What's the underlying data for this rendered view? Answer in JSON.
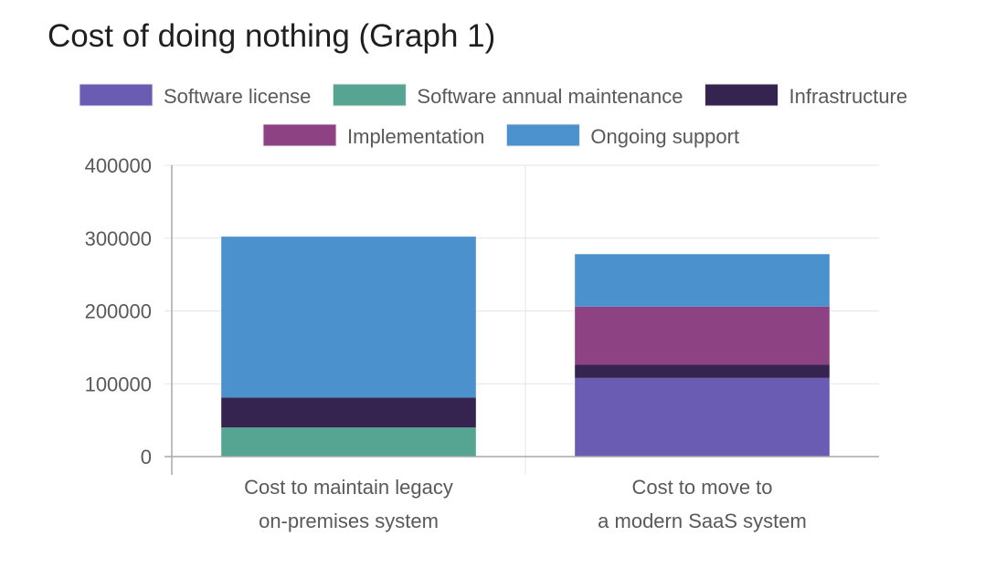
{
  "colors": {
    "software_license": "#6a5cb3",
    "software_annual_maintenance": "#55a592",
    "infrastructure": "#35244f",
    "implementation": "#8c4283",
    "ongoing_support": "#4b91cd",
    "grid": "#e6e6e6",
    "axis": "#a8a8a8"
  },
  "chart_data": {
    "type": "bar",
    "stacked": true,
    "title": "Cost of doing nothing (Graph 1)",
    "xlabel": "",
    "ylabel": "",
    "categories": [
      [
        "Cost to maintain legacy",
        "on-premises system"
      ],
      [
        "Cost to move to",
        "a modern SaaS system"
      ]
    ],
    "ylim": [
      0,
      400000
    ],
    "yticks": [
      0,
      100000,
      200000,
      300000,
      400000
    ],
    "ytick_labels": [
      "0",
      "100000",
      "200000",
      "300000",
      "400000"
    ],
    "grid": true,
    "legend_position": "top",
    "series": [
      {
        "name": "Software license",
        "color": "#6a5cb3",
        "values": [
          0,
          108000
        ]
      },
      {
        "name": "Software annual maintenance",
        "color": "#55a592",
        "values": [
          40000,
          0
        ]
      },
      {
        "name": "Infrastructure",
        "color": "#35244f",
        "values": [
          41000,
          18000
        ]
      },
      {
        "name": "Implementation",
        "color": "#8c4283",
        "values": [
          0,
          80000
        ]
      },
      {
        "name": "Ongoing support",
        "color": "#4b91cd",
        "values": [
          221000,
          72000
        ]
      }
    ]
  }
}
